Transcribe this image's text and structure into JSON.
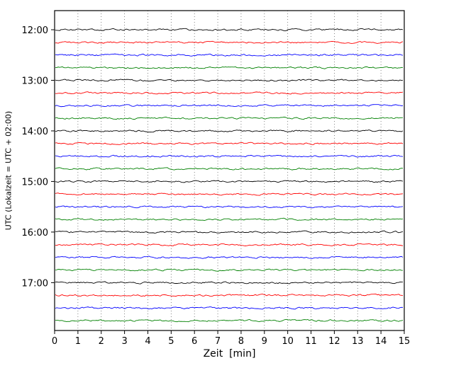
{
  "chart_data": {
    "type": "line",
    "subtype": "helicorder-dayplot",
    "title": "",
    "xlabel": "Zeit  [min]",
    "ylabel": "UTC (Lokalzeit = UTC + 02:00)",
    "x_range": [
      0,
      15
    ],
    "x_ticks": [
      0,
      1,
      2,
      3,
      4,
      5,
      6,
      7,
      8,
      9,
      10,
      11,
      12,
      13,
      14,
      15
    ],
    "minutes_per_line": 15,
    "grid": "vertical-dotted",
    "legend": "none",
    "y_axis_direction": "time increases downward",
    "trace_color_cycle": [
      "#000000",
      "#ff0000",
      "#0000ff",
      "#008000"
    ],
    "trace_description": "flat low-amplitude noise, no visible events",
    "y_tick_labels": [
      "12:00",
      "13:00",
      "14:00",
      "15:00",
      "16:00",
      "17:00"
    ],
    "traces": [
      {
        "start": "12:00",
        "color": "#000000"
      },
      {
        "start": "12:15",
        "color": "#ff0000"
      },
      {
        "start": "12:30",
        "color": "#0000ff"
      },
      {
        "start": "12:45",
        "color": "#008000"
      },
      {
        "start": "13:00",
        "color": "#000000"
      },
      {
        "start": "13:15",
        "color": "#ff0000"
      },
      {
        "start": "13:30",
        "color": "#0000ff"
      },
      {
        "start": "13:45",
        "color": "#008000"
      },
      {
        "start": "14:00",
        "color": "#000000"
      },
      {
        "start": "14:15",
        "color": "#ff0000"
      },
      {
        "start": "14:30",
        "color": "#0000ff"
      },
      {
        "start": "14:45",
        "color": "#008000"
      },
      {
        "start": "15:00",
        "color": "#000000"
      },
      {
        "start": "15:15",
        "color": "#ff0000"
      },
      {
        "start": "15:30",
        "color": "#0000ff"
      },
      {
        "start": "15:45",
        "color": "#008000"
      },
      {
        "start": "16:00",
        "color": "#000000"
      },
      {
        "start": "16:15",
        "color": "#ff0000"
      },
      {
        "start": "16:30",
        "color": "#0000ff"
      },
      {
        "start": "16:45",
        "color": "#008000"
      },
      {
        "start": "17:00",
        "color": "#000000"
      },
      {
        "start": "17:15",
        "color": "#ff0000"
      },
      {
        "start": "17:30",
        "color": "#0000ff"
      },
      {
        "start": "17:45",
        "color": "#008000"
      }
    ]
  }
}
